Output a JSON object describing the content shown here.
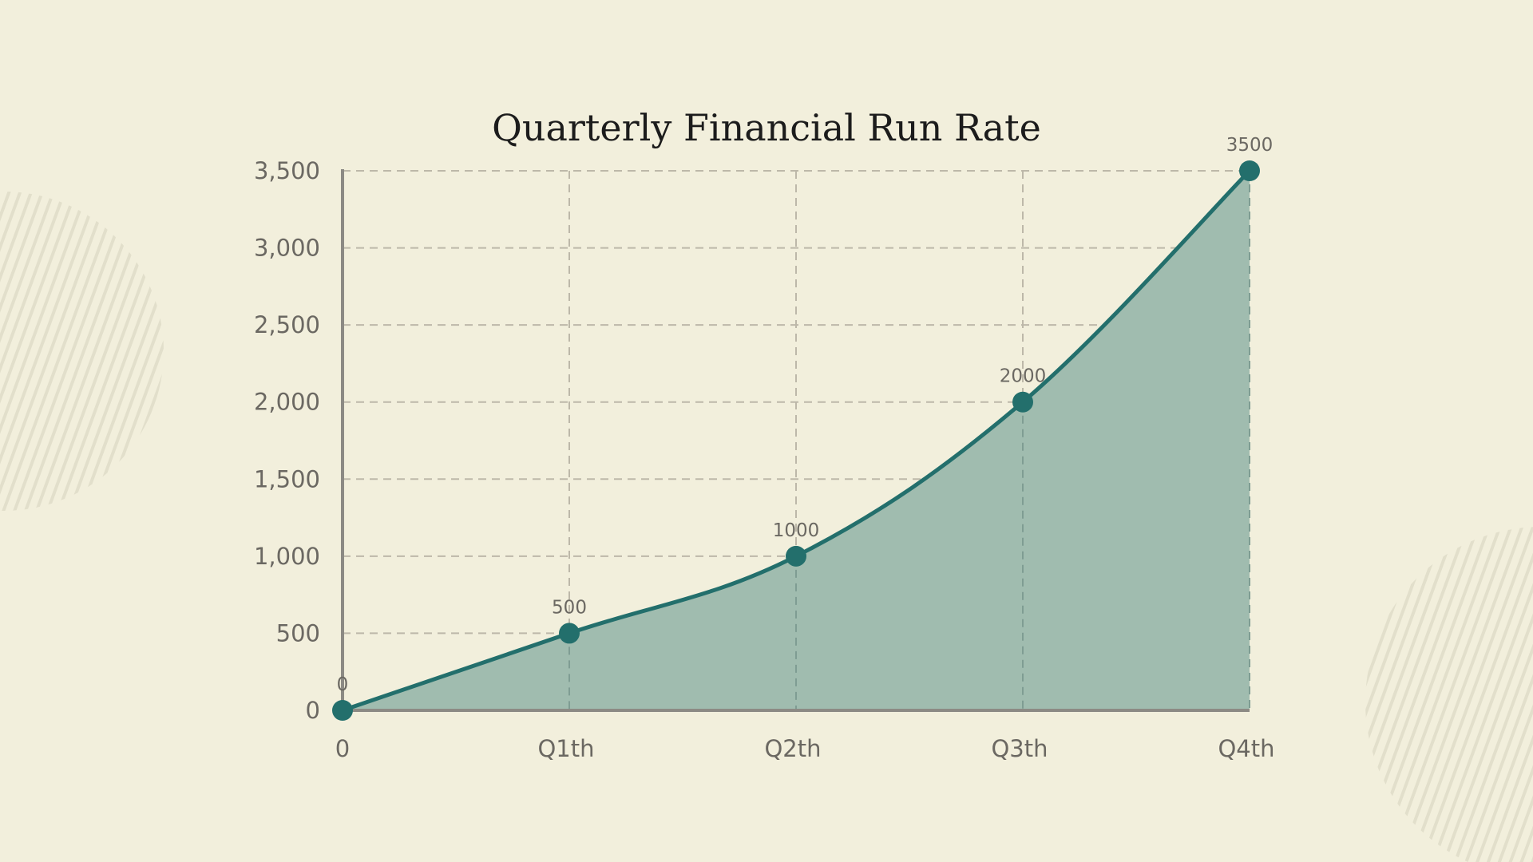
{
  "chart_data": {
    "type": "area",
    "title": "Quarterly Financial Run Rate",
    "xlabel": "",
    "ylabel": "",
    "categories": [
      "0",
      "Q1th",
      "Q2th",
      "Q3th",
      "Q4th"
    ],
    "values": [
      0,
      500,
      1000,
      2000,
      3500
    ],
    "data_labels": [
      "0",
      "500",
      "1000",
      "2000",
      "3500"
    ],
    "yticks": [
      0,
      500,
      1000,
      1500,
      2000,
      2500,
      3000,
      3500
    ],
    "ytick_labels": [
      "0",
      "500",
      "1,000",
      "1,500",
      "2,000",
      "2,500",
      "3,000",
      "3,500"
    ],
    "ylim": [
      0,
      3500
    ],
    "grid": true,
    "legend": null,
    "smooth": true
  },
  "colors": {
    "background": "#f2efdc",
    "line": "#236f6c",
    "fill": "#a0bcaf",
    "grid": "#bdb8a9",
    "axis": "#8c8a84",
    "tick_text": "#6b6862",
    "title": "#1c1c1c",
    "decor_stripe": "#e2dfcb"
  }
}
